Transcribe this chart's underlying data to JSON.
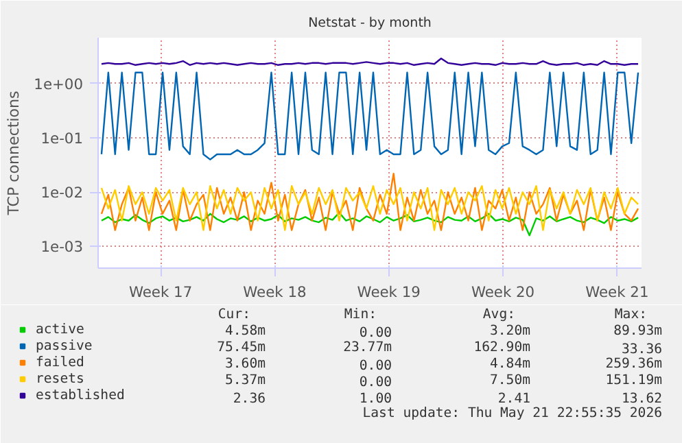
{
  "chart_data": {
    "type": "line",
    "title": "Netstat - by month",
    "ylabel": "TCP connections",
    "log": true,
    "grid": true,
    "legend": "bottom",
    "xlim": [
      "2026-04-18T15:00",
      "2026-05-21T23:00"
    ],
    "xticks": [
      {
        "value": "2026-04-22T11:00",
        "label": "Week 17"
      },
      {
        "value": "2026-04-29T11:00",
        "label": "Week 18"
      },
      {
        "value": "2026-05-06T11:00",
        "label": "Week 19"
      },
      {
        "value": "2026-05-13T11:00",
        "label": "Week 20"
      },
      {
        "value": "2026-05-20T11:00",
        "label": "Week 21"
      }
    ],
    "ylim": [
      0.0004,
      7
    ],
    "yticks": [
      {
        "value": 0.001,
        "label": "1e-03"
      },
      {
        "value": 0.01,
        "label": "1e-02"
      },
      {
        "value": 0.1,
        "label": "1e-01"
      },
      {
        "value": 1,
        "label": "1e+00"
      }
    ],
    "x": [
      "2026-04-18T20:00",
      "2026-04-19T06:00",
      "2026-04-19T16:00",
      "2026-04-20T02:00",
      "2026-04-20T12:00",
      "2026-04-20T22:00",
      "2026-04-21T08:00",
      "2026-04-21T18:00",
      "2026-04-22T04:00",
      "2026-04-22T14:00",
      "2026-04-23T00:00",
      "2026-04-23T10:00",
      "2026-04-23T20:00",
      "2026-04-24T06:00",
      "2026-04-24T16:00",
      "2026-04-25T02:00",
      "2026-04-25T12:00",
      "2026-04-25T22:00",
      "2026-04-26T08:00",
      "2026-04-26T18:00",
      "2026-04-27T04:00",
      "2026-04-27T14:00",
      "2026-04-28T00:00",
      "2026-04-28T10:00",
      "2026-04-28T20:00",
      "2026-04-29T06:00",
      "2026-04-29T16:00",
      "2026-04-30T02:00",
      "2026-04-30T12:00",
      "2026-04-30T22:00",
      "2026-05-01T08:00",
      "2026-05-01T18:00",
      "2026-05-02T04:00",
      "2026-05-02T14:00",
      "2026-05-03T00:00",
      "2026-05-03T10:00",
      "2026-05-03T20:00",
      "2026-05-04T06:00",
      "2026-05-04T16:00",
      "2026-05-05T02:00",
      "2026-05-05T12:00",
      "2026-05-05T22:00",
      "2026-05-06T08:00",
      "2026-05-06T18:00",
      "2026-05-07T04:00",
      "2026-05-07T14:00",
      "2026-05-08T00:00",
      "2026-05-08T10:00",
      "2026-05-08T20:00",
      "2026-05-09T06:00",
      "2026-05-09T16:00",
      "2026-05-10T02:00",
      "2026-05-10T12:00",
      "2026-05-10T22:00",
      "2026-05-11T08:00",
      "2026-05-11T18:00",
      "2026-05-12T04:00",
      "2026-05-12T14:00",
      "2026-05-13T00:00",
      "2026-05-13T10:00",
      "2026-05-13T20:00",
      "2026-05-14T06:00",
      "2026-05-14T16:00",
      "2026-05-15T02:00",
      "2026-05-15T12:00",
      "2026-05-15T22:00",
      "2026-05-16T08:00",
      "2026-05-16T18:00",
      "2026-05-17T04:00",
      "2026-05-17T14:00",
      "2026-05-18T00:00",
      "2026-05-18T10:00",
      "2026-05-18T20:00",
      "2026-05-19T06:00",
      "2026-05-19T16:00",
      "2026-05-20T02:00",
      "2026-05-20T12:00",
      "2026-05-20T22:00",
      "2026-05-21T08:00",
      "2026-05-21T18:00"
    ],
    "series": [
      {
        "name": "active",
        "color": "#00cc00",
        "values": [
          0.003,
          0.0035,
          0.0028,
          0.0032,
          0.003,
          0.0038,
          0.0031,
          0.0027,
          0.0033,
          0.0036,
          0.003,
          0.0034,
          0.0029,
          0.0031,
          0.0035,
          0.003,
          0.004,
          0.0032,
          0.0028,
          0.0033,
          0.0031,
          0.0036,
          0.0029,
          0.0034,
          0.003,
          0.0032,
          0.0038,
          0.0029,
          0.0033,
          0.0031,
          0.0035,
          0.003,
          0.0028,
          0.0034,
          0.0031,
          0.0042,
          0.003,
          0.0033,
          0.0029,
          0.0036,
          0.0032,
          0.0028,
          0.0035,
          0.003,
          0.0033,
          0.0038,
          0.0029,
          0.0031,
          0.0034,
          0.003,
          0.0028,
          0.0035,
          0.0031,
          0.003,
          0.0036,
          0.0029,
          0.0033,
          0.004,
          0.003,
          0.0032,
          0.0029,
          0.0034,
          0.0031,
          0.0016,
          0.0033,
          0.003,
          0.0036,
          0.0029,
          0.0032,
          0.0035,
          0.003,
          0.0028,
          0.0034,
          0.0031,
          0.0027,
          0.0035,
          0.003,
          0.0032,
          0.0029,
          0.0034
        ]
      },
      {
        "name": "passive",
        "color": "#0066b3",
        "values": [
          0.05,
          1.6,
          0.05,
          1.6,
          0.06,
          1.6,
          1.6,
          0.05,
          0.05,
          1.6,
          0.06,
          1.6,
          0.07,
          0.05,
          1.6,
          0.05,
          0.04,
          0.05,
          0.05,
          0.05,
          0.06,
          0.05,
          0.05,
          0.06,
          0.08,
          1.6,
          0.05,
          0.05,
          1.6,
          0.05,
          1.6,
          0.06,
          0.05,
          1.6,
          0.05,
          1.6,
          1.6,
          0.05,
          1.6,
          0.06,
          1.6,
          0.05,
          0.06,
          0.05,
          0.05,
          1.6,
          0.05,
          0.06,
          1.6,
          0.07,
          0.05,
          0.06,
          1.6,
          0.05,
          1.6,
          0.07,
          1.6,
          0.06,
          0.05,
          0.07,
          0.08,
          1.6,
          0.07,
          0.06,
          0.05,
          0.06,
          1.6,
          0.07,
          1.6,
          0.07,
          0.06,
          1.6,
          0.05,
          0.06,
          1.6,
          0.05,
          1.6,
          1.6,
          0.08,
          1.6
        ]
      },
      {
        "name": "failed",
        "color": "#ff8000",
        "values": [
          0.004,
          0.009,
          0.002,
          0.006,
          0.012,
          0.003,
          0.008,
          0.002,
          0.01,
          0.004,
          0.007,
          0.002,
          0.011,
          0.003,
          0.006,
          0.009,
          0.002,
          0.012,
          0.004,
          0.008,
          0.003,
          0.01,
          0.002,
          0.007,
          0.004,
          0.015,
          0.003,
          0.009,
          0.002,
          0.006,
          0.011,
          0.003,
          0.008,
          0.002,
          0.01,
          0.004,
          0.007,
          0.002,
          0.012,
          0.005,
          0.003,
          0.009,
          0.004,
          0.022,
          0.002,
          0.008,
          0.003,
          0.011,
          0.004,
          0.007,
          0.002,
          0.01,
          0.004,
          0.008,
          0.003,
          0.012,
          0.002,
          0.007,
          0.005,
          0.011,
          0.003,
          0.008,
          0.002,
          0.01,
          0.004,
          0.006,
          0.012,
          0.003,
          0.009,
          0.004,
          0.007,
          0.002,
          0.011,
          0.003,
          0.008,
          0.002,
          0.01,
          0.004,
          0.003,
          0.005
        ]
      },
      {
        "name": "resets",
        "color": "#ffcc00",
        "values": [
          0.012,
          0.005,
          0.011,
          0.003,
          0.013,
          0.006,
          0.01,
          0.004,
          0.012,
          0.007,
          0.011,
          0.003,
          0.012,
          0.006,
          0.01,
          0.002,
          0.013,
          0.005,
          0.011,
          0.004,
          0.012,
          0.007,
          0.01,
          0.003,
          0.012,
          0.005,
          0.011,
          0.002,
          0.013,
          0.006,
          0.01,
          0.004,
          0.012,
          0.006,
          0.011,
          0.003,
          0.012,
          0.007,
          0.01,
          0.005,
          0.013,
          0.004,
          0.011,
          0.006,
          0.012,
          0.003,
          0.01,
          0.005,
          0.012,
          0.002,
          0.011,
          0.006,
          0.012,
          0.004,
          0.01,
          0.007,
          0.013,
          0.003,
          0.011,
          0.005,
          0.012,
          0.004,
          0.01,
          0.006,
          0.013,
          0.002,
          0.011,
          0.005,
          0.01,
          0.004,
          0.011,
          0.006,
          0.012,
          0.003,
          0.01,
          0.005,
          0.012,
          0.004,
          0.008,
          0.006
        ]
      },
      {
        "name": "established",
        "color": "#330099",
        "values": [
          2.3,
          2.4,
          2.3,
          2.3,
          2.4,
          2.2,
          2.3,
          2.4,
          2.3,
          2.4,
          2.3,
          2.4,
          2.6,
          2.2,
          2.4,
          2.3,
          2.4,
          2.3,
          2.4,
          2.3,
          2.2,
          2.3,
          2.4,
          2.3,
          2.3,
          2.4,
          2.2,
          2.3,
          2.3,
          2.4,
          2.3,
          2.4,
          2.4,
          2.3,
          2.4,
          2.4,
          2.4,
          2.3,
          2.4,
          2.5,
          2.4,
          2.3,
          2.4,
          2.4,
          2.3,
          2.4,
          2.2,
          2.3,
          2.4,
          2.3,
          2.9,
          2.4,
          2.3,
          2.2,
          2.3,
          2.4,
          2.3,
          2.3,
          2.2,
          2.4,
          2.3,
          2.3,
          2.4,
          2.3,
          2.3,
          2.6,
          2.3,
          2.2,
          2.3,
          2.3,
          2.4,
          2.2,
          2.3,
          2.2,
          2.6,
          2.3,
          2.3,
          2.2,
          2.3,
          2.3
        ]
      }
    ],
    "annotations": [
      "Cur:",
      "Min:",
      "Avg:",
      "Max:",
      "4.58m",
      "0.00",
      "3.20m",
      "89.93m",
      "75.45m",
      "23.77m",
      "162.90m",
      "33.36",
      "3.60m",
      "0.00",
      "4.84m",
      "259.36m",
      "5.37m",
      "0.00",
      "7.50m",
      "151.19m",
      "2.36",
      "1.00",
      "2.41",
      "13.62",
      "Last update: Thu May 21 22:55:35 2026"
    ]
  }
}
